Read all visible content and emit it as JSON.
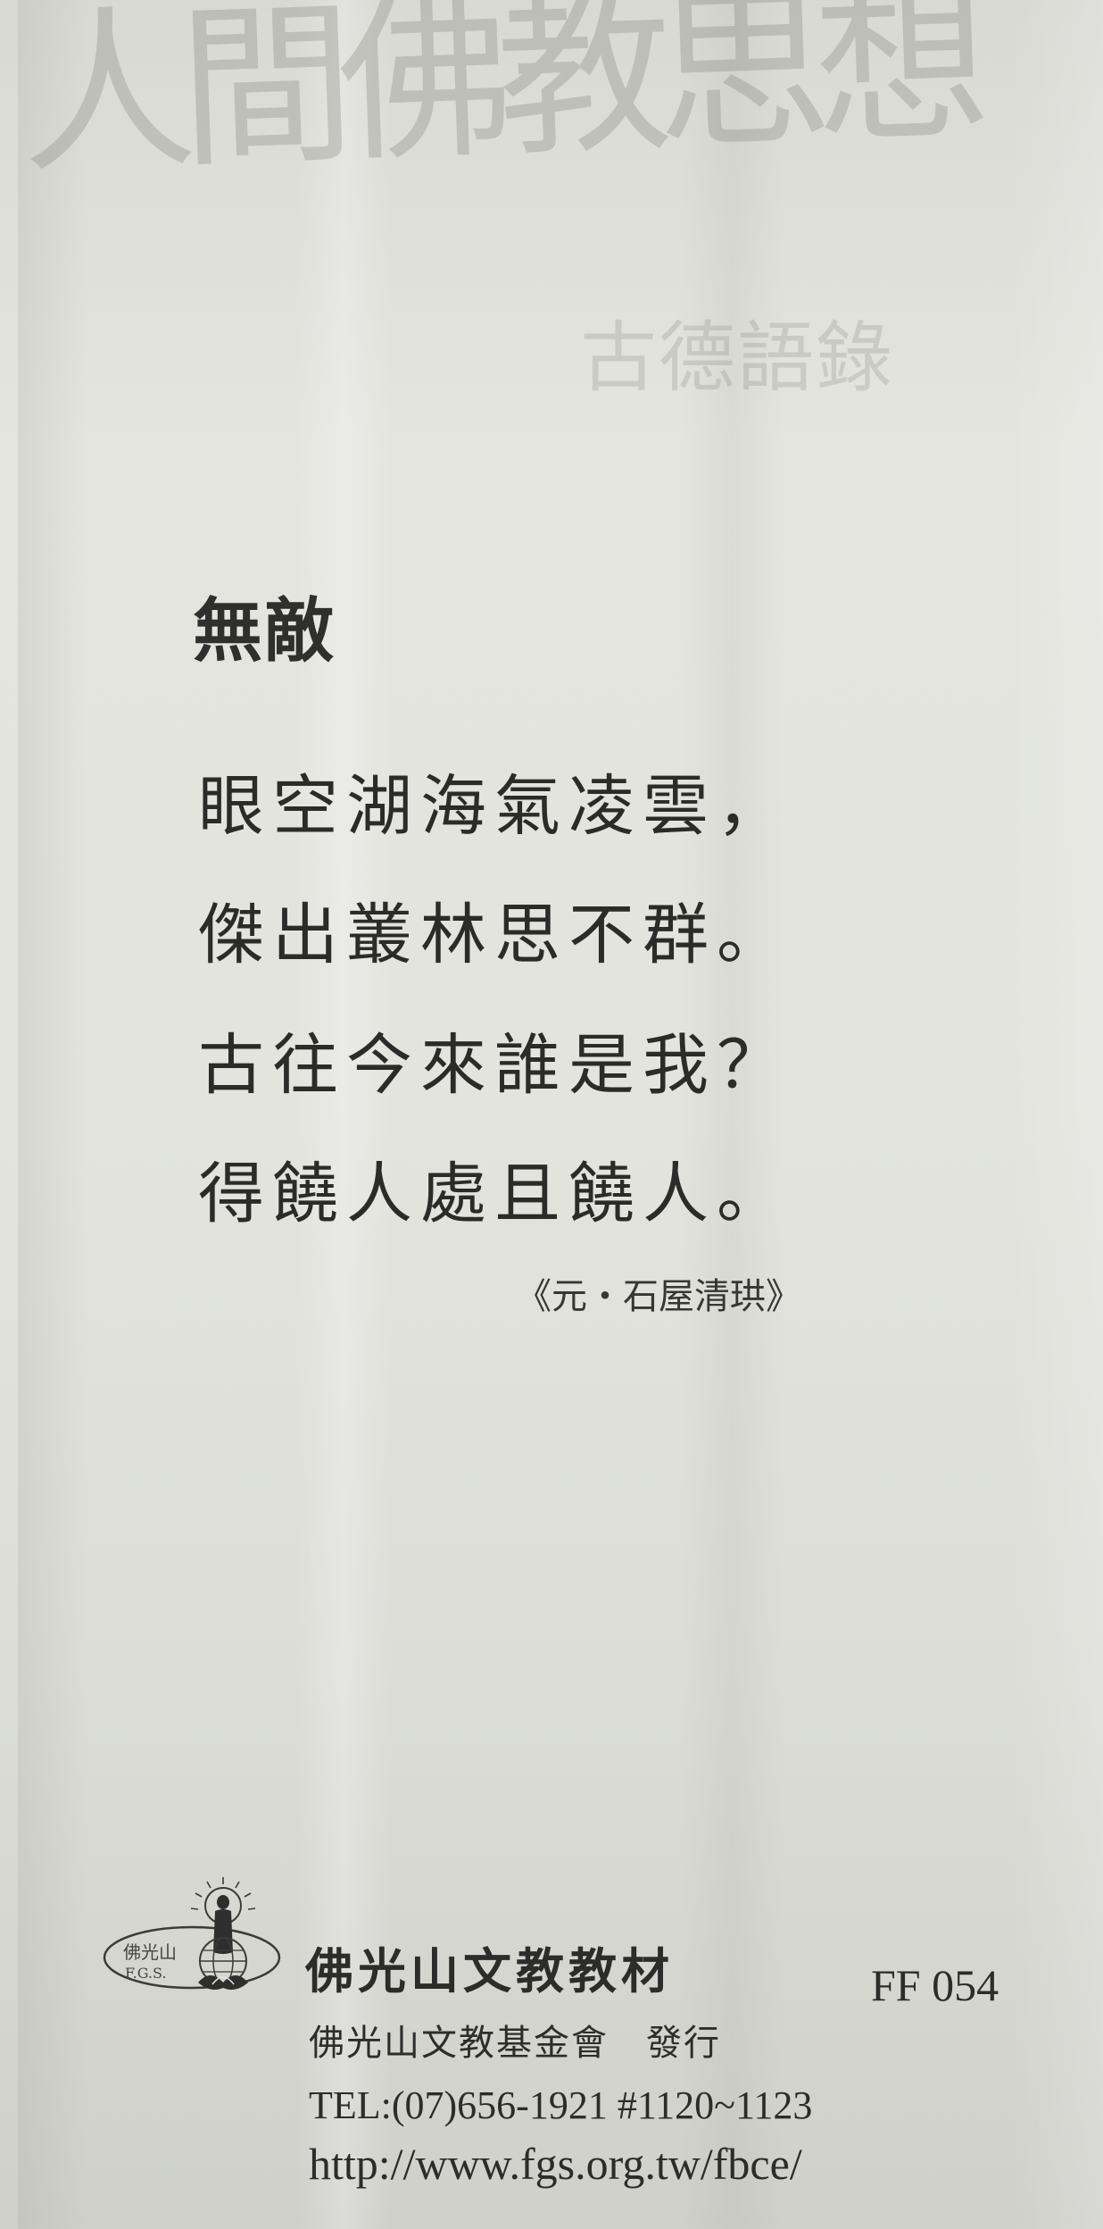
{
  "header": {
    "calligraphy_title": "人間佛教思想",
    "subtitle": "古德語錄"
  },
  "poem": {
    "title": "無敵",
    "lines": [
      "眼空湖海氣凌雲，",
      "傑出叢林思不群。",
      "古往今來誰是我？",
      "得饒人處且饒人。"
    ],
    "source": "《元・石屋清珙》"
  },
  "footer": {
    "logo": {
      "icon": "fgs-buddha-lotus-globe-icon",
      "text_cn": "佛光山",
      "text_en": "F.G.S."
    },
    "publisher_name": "佛光山文教教材",
    "product_code": "FF 054",
    "issuer": "佛光山文教基金會　發行",
    "tel": "TEL:(07)656-1921 #1120~1123",
    "url": "http://www.fgs.org.tw/fbce/"
  },
  "colors": {
    "paper": "#e3e4de",
    "ink": "#2b2b29",
    "watermark": "#76766e"
  }
}
